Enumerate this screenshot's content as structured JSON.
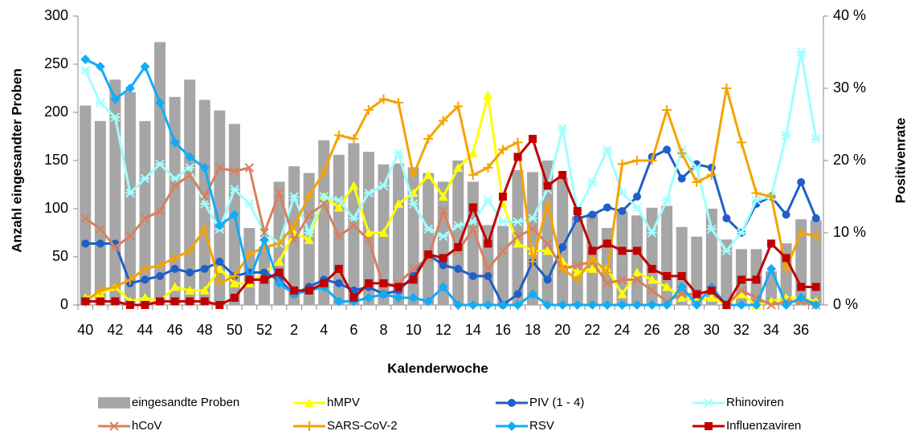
{
  "chart_data": {
    "type": "bar",
    "x_label": "Kalenderwoche",
    "y_label": "Anzahl eingesandter Proben",
    "y2_label": "Positivenrate",
    "categories": [
      "40",
      null,
      "42",
      null,
      "44",
      null,
      "46",
      null,
      "48",
      null,
      "50",
      null,
      "52",
      null,
      "2",
      null,
      "4",
      null,
      "6",
      null,
      "8",
      null,
      "10",
      null,
      "12",
      null,
      "14",
      null,
      "16",
      null,
      "18",
      null,
      "20",
      null,
      "22",
      null,
      "24",
      null,
      "26",
      null,
      "28",
      null,
      "30",
      null,
      "32",
      null,
      "34",
      null,
      "36",
      null
    ],
    "ylim": [
      0,
      300
    ],
    "yticks": [
      0,
      50,
      100,
      150,
      200,
      250,
      300
    ],
    "y2lim": [
      0,
      40
    ],
    "y2ticks": [
      {
        "value": 0,
        "label": "0 %"
      },
      {
        "value": 10,
        "label": "10 %"
      },
      {
        "value": 20,
        "label": "20 %"
      },
      {
        "value": 30,
        "label": "30 %"
      },
      {
        "value": 40,
        "label": "40 %"
      }
    ],
    "series": [
      {
        "name": "eingesandte Proben",
        "type": "bar",
        "color": "#a6a6a6",
        "values": [
          207,
          191,
          234,
          221,
          191,
          273,
          216,
          234,
          213,
          202,
          188,
          80,
          60,
          128,
          144,
          137,
          171,
          156,
          168,
          159,
          146,
          147,
          143,
          137,
          128,
          150,
          128,
          83,
          82,
          140,
          138,
          150,
          132,
          92,
          95,
          80,
          97,
          93,
          101,
          103,
          81,
          71,
          100,
          68,
          58,
          58,
          35,
          64,
          89,
          88
        ]
      },
      {
        "name": "hMPV",
        "type": "line",
        "axis": "y2",
        "marker": "triangle",
        "color": "#ffff00",
        "values": [
          1,
          1.5,
          2.5,
          0.5,
          1,
          0.5,
          2.5,
          2,
          2,
          5,
          3,
          3,
          4.5,
          6,
          10,
          9,
          15,
          13.5,
          16.5,
          10,
          10,
          14,
          15.5,
          18,
          15,
          19,
          21,
          29,
          14,
          8.5,
          7.5,
          7.5,
          6,
          4.5,
          5,
          5,
          1.5,
          4.5,
          3.5,
          2.5,
          1,
          0.5,
          1,
          0,
          1.5,
          0,
          0.5,
          1,
          1,
          0.5
        ]
      },
      {
        "name": "PIV (1 - 4)",
        "type": "line",
        "axis": "y2",
        "marker": "circle",
        "color": "#1f5fc8",
        "values": [
          8.5,
          8.5,
          8.5,
          3,
          3.5,
          4,
          5,
          4.5,
          5,
          6,
          4,
          4.5,
          4.5,
          3.5,
          1.5,
          2.5,
          3.5,
          3,
          2,
          2.5,
          1.5,
          2,
          4,
          7,
          5.5,
          5,
          4,
          4,
          0,
          1.5,
          6,
          3.5,
          8,
          12,
          12.5,
          13.5,
          13,
          15,
          20.5,
          21.5,
          17.5,
          19.5,
          19,
          12,
          10,
          14,
          15,
          12.5,
          17,
          12
        ]
      },
      {
        "name": "Rhinoviren",
        "type": "line",
        "axis": "y2",
        "marker": "star",
        "color": "#a0ffff",
        "values": [
          32.5,
          28,
          26,
          15.5,
          17.5,
          19.5,
          17.5,
          19,
          14,
          10.5,
          16,
          14,
          10,
          8.5,
          15,
          10,
          15,
          14.5,
          12,
          15.5,
          16.5,
          21,
          14,
          10.5,
          9.5,
          11,
          11.5,
          14.5,
          11.5,
          11.5,
          12,
          16,
          24.5,
          13,
          17,
          21.5,
          15.5,
          13.5,
          10,
          14.5,
          21.5,
          19,
          10.5,
          7.5,
          10,
          14.5,
          15,
          23.5,
          35,
          23
        ]
      },
      {
        "name": "hCoV",
        "type": "line",
        "axis": "y2",
        "marker": "x",
        "color": "#d9805f",
        "values": [
          12,
          10.5,
          8,
          9.5,
          12,
          13,
          16.5,
          18,
          15,
          19,
          18.5,
          19,
          10,
          15.5,
          9,
          12.5,
          14,
          9.5,
          11,
          9,
          2.5,
          3,
          5,
          6.5,
          13,
          7.5,
          10.5,
          5,
          7.5,
          9.5,
          10.5,
          8.5,
          5,
          5.5,
          6,
          3,
          3.5,
          3.5,
          2,
          0.5,
          1.5,
          1.5,
          2,
          0,
          2,
          1,
          0,
          0.5,
          0.5,
          0
        ]
      },
      {
        "name": "SARS-CoV-2",
        "type": "line",
        "axis": "y2",
        "marker": "plus",
        "color": "#f5a300",
        "values": [
          0.5,
          2,
          2.5,
          3.5,
          5,
          5.5,
          6.5,
          7.5,
          10.5,
          3,
          4,
          7,
          8,
          8.5,
          11,
          15,
          18.5,
          23.5,
          23,
          27,
          28.5,
          28,
          18,
          23,
          25.5,
          27.5,
          18,
          19,
          21.5,
          22.5,
          6,
          14,
          5,
          3.5,
          6.5,
          4.5,
          19.5,
          20,
          20,
          27,
          21,
          17,
          18,
          30,
          22.5,
          15.5,
          15,
          5,
          10,
          9.5
        ]
      },
      {
        "name": "RSV",
        "type": "line",
        "axis": "y2",
        "marker": "diamond",
        "color": "#12acf5",
        "values": [
          34,
          33,
          28.5,
          30,
          33,
          28,
          22.5,
          20.5,
          19,
          11,
          12.5,
          3.5,
          9,
          3,
          1.5,
          2,
          2.5,
          0.5,
          0.5,
          1,
          1.5,
          1,
          1,
          0.5,
          2.5,
          0,
          0,
          0,
          0,
          0,
          1.5,
          0,
          0,
          0,
          0,
          0,
          0,
          0,
          0,
          0,
          2.5,
          0,
          2.5,
          0,
          0,
          0,
          5,
          0,
          1,
          0
        ]
      },
      {
        "name": "Influenzaviren",
        "type": "line",
        "axis": "y2",
        "marker": "square",
        "color": "#c00000",
        "values": [
          0.5,
          0.5,
          0.5,
          0,
          0,
          0.5,
          0.5,
          0.5,
          0.5,
          0,
          1,
          3.5,
          3.5,
          4.5,
          2,
          2,
          3,
          5,
          1,
          3,
          3,
          2.5,
          3.5,
          7,
          6.5,
          8,
          13.5,
          8.5,
          15,
          20.5,
          23,
          16.5,
          18,
          13,
          7.5,
          8.5,
          7.5,
          7.5,
          5,
          4,
          4,
          1.5,
          2,
          0,
          3.5,
          3.5,
          8.5,
          6.5,
          2.5,
          2.5
        ]
      }
    ]
  }
}
